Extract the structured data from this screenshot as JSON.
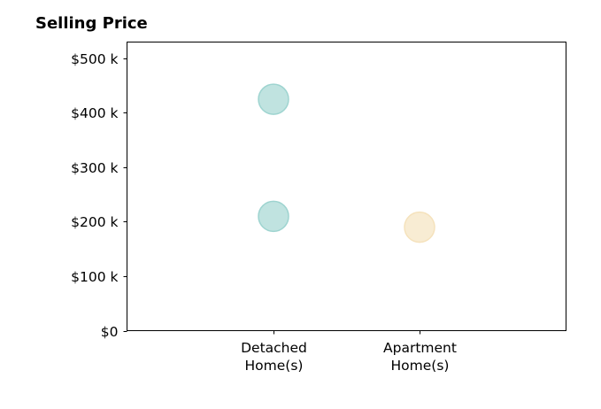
{
  "chart_data": {
    "type": "scatter",
    "title": "Selling Price",
    "xlabel": "",
    "ylabel": "",
    "categories": [
      [
        "Detached",
        "Home(s)"
      ],
      [
        "Apartment",
        "Home(s)"
      ]
    ],
    "yticks": [
      0,
      100000,
      200000,
      300000,
      400000,
      500000
    ],
    "ytick_labels": [
      "$0",
      "$100 k",
      "$200 k",
      "$300 k",
      "$400 k",
      "$500 k"
    ],
    "ylim": [
      0,
      530000
    ],
    "grid": false,
    "legend": false,
    "points": [
      {
        "category": 0,
        "value": 425000,
        "color": "#9ed4d0"
      },
      {
        "category": 0,
        "value": 210000,
        "color": "#9ed4d0"
      },
      {
        "category": 1,
        "value": 190000,
        "color": "#f5e2bc"
      }
    ]
  }
}
